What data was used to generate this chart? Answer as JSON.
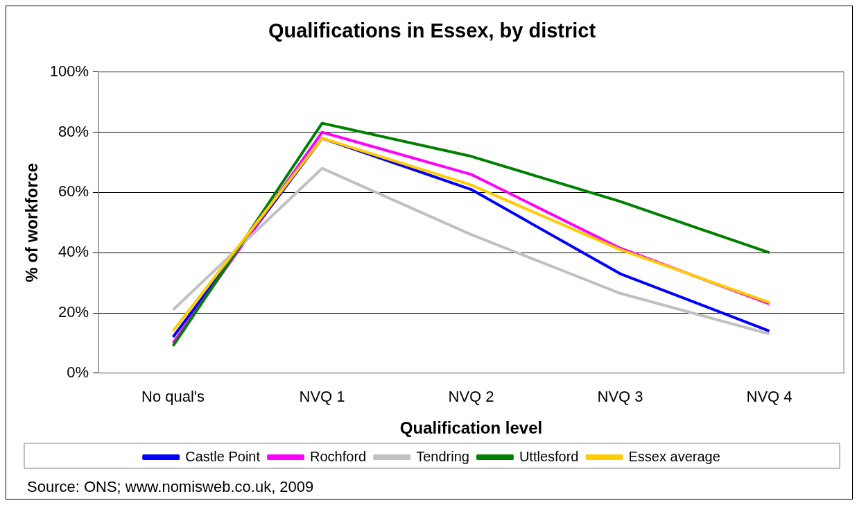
{
  "chart_data": {
    "type": "line",
    "title": "Qualifications in Essex, by district",
    "xlabel": "Qualification level",
    "ylabel": "% of workforce",
    "categories": [
      "No qual's",
      "NVQ 1",
      "NVQ 2",
      "NVQ 3",
      "NVQ 4"
    ],
    "series": [
      {
        "name": "Castle Point",
        "color": "#0000ff",
        "values": [
          12,
          78,
          61,
          33,
          14
        ]
      },
      {
        "name": "Rochford",
        "color": "#ff00ff",
        "values": [
          10,
          80,
          66,
          41.5,
          23
        ]
      },
      {
        "name": "Tendring",
        "color": "#c0c0c0",
        "values": [
          21,
          68,
          46,
          26.5,
          13
        ]
      },
      {
        "name": "Uttlesford",
        "color": "#008000",
        "values": [
          9,
          83,
          72,
          57,
          40
        ]
      },
      {
        "name": "Essex average",
        "color": "#ffcc00",
        "values": [
          14,
          78,
          62.5,
          41,
          23.5
        ]
      }
    ],
    "ylim": [
      0,
      100
    ],
    "yticks": [
      {
        "value": 0,
        "label": "0%"
      },
      {
        "value": 20,
        "label": "20%"
      },
      {
        "value": 40,
        "label": "40%"
      },
      {
        "value": 60,
        "label": "60%"
      },
      {
        "value": 80,
        "label": "80%"
      },
      {
        "value": 100,
        "label": "100%"
      }
    ],
    "grid": "y",
    "legend": "bottom",
    "marker": "none",
    "line_style": "solid",
    "annotations": [
      "Source: ONS; www.nomisweb.co.uk, 2009"
    ]
  }
}
